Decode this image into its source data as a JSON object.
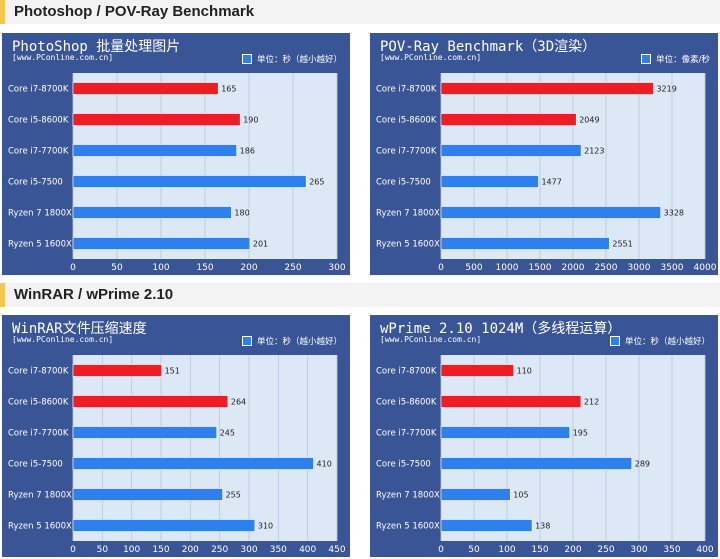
{
  "sections": [
    {
      "label": "Photoshop / POV-Ray Benchmark"
    },
    {
      "label": "WinRAR / wPrime 2.10"
    }
  ],
  "colors": {
    "panel_bg": "#3a5596",
    "plot_bg": "#dde8f6",
    "highlight_bar": "#ee1c25",
    "bar": "#2f80ed",
    "grid": "#b6c6dc"
  },
  "chart_data": [
    {
      "type": "bar",
      "orientation": "horizontal",
      "title": "PhotoShop 批量处理图片",
      "source": "[www.PConline.com.cn]",
      "legend": "单位：秒（越小越好）",
      "categories": [
        "Core i7-8700K",
        "Core i5-8600K",
        "Core i7-7700K",
        "Core i5-7500",
        "Ryzen 7 1800X",
        "Ryzen 5 1600X"
      ],
      "values": [
        165,
        190,
        186,
        265,
        180,
        201
      ],
      "highlight": [
        true,
        true,
        false,
        false,
        false,
        false
      ],
      "xlim": [
        0,
        300
      ],
      "ticks": [
        0,
        50,
        100,
        150,
        200,
        250,
        300
      ],
      "grid": true
    },
    {
      "type": "bar",
      "orientation": "horizontal",
      "title": "POV-Ray Benchmark（3D渲染）",
      "source": "[www.PConline.com.cn]",
      "legend": "单位：像素/秒",
      "categories": [
        "Core i7-8700K",
        "Core i5-8600K",
        "Core i7-7700K",
        "Core i5-7500",
        "Ryzen 7 1800X",
        "Ryzen 5 1600X"
      ],
      "values": [
        3219,
        2049,
        2123,
        1477,
        3328,
        2551
      ],
      "highlight": [
        true,
        true,
        false,
        false,
        false,
        false
      ],
      "xlim": [
        0,
        4000
      ],
      "ticks": [
        0,
        500,
        1000,
        1500,
        2000,
        2500,
        3000,
        3500,
        4000
      ],
      "grid": true
    },
    {
      "type": "bar",
      "orientation": "horizontal",
      "title": "WinRAR文件压缩速度",
      "source": "[www.PConline.com.cn]",
      "legend": "单位：秒（越小越好）",
      "categories": [
        "Core i7-8700K",
        "Core i5-8600K",
        "Core i7-7700K",
        "Core i5-7500",
        "Ryzen 7 1800X",
        "Ryzen 5 1600X"
      ],
      "values": [
        151,
        264,
        245,
        410,
        255,
        310
      ],
      "highlight": [
        true,
        true,
        false,
        false,
        false,
        false
      ],
      "xlim": [
        0,
        450
      ],
      "ticks": [
        0,
        50,
        100,
        150,
        200,
        250,
        300,
        350,
        400,
        450
      ],
      "grid": true
    },
    {
      "type": "bar",
      "orientation": "horizontal",
      "title": "wPrime 2.10 1024M（多线程运算）",
      "source": "[www.PConline.com.cn]",
      "legend": "单位：秒（越小越好）",
      "categories": [
        "Core i7-8700K",
        "Core i5-8600K",
        "Core i7-7700K",
        "Core i5-7500",
        "Ryzen 7 1800X",
        "Ryzen 5 1600X"
      ],
      "values": [
        110,
        212,
        195,
        289,
        105,
        138
      ],
      "highlight": [
        true,
        true,
        false,
        false,
        false,
        false
      ],
      "xlim": [
        0,
        400
      ],
      "ticks": [
        0,
        50,
        100,
        150,
        200,
        250,
        300,
        350,
        400
      ],
      "grid": true
    }
  ]
}
